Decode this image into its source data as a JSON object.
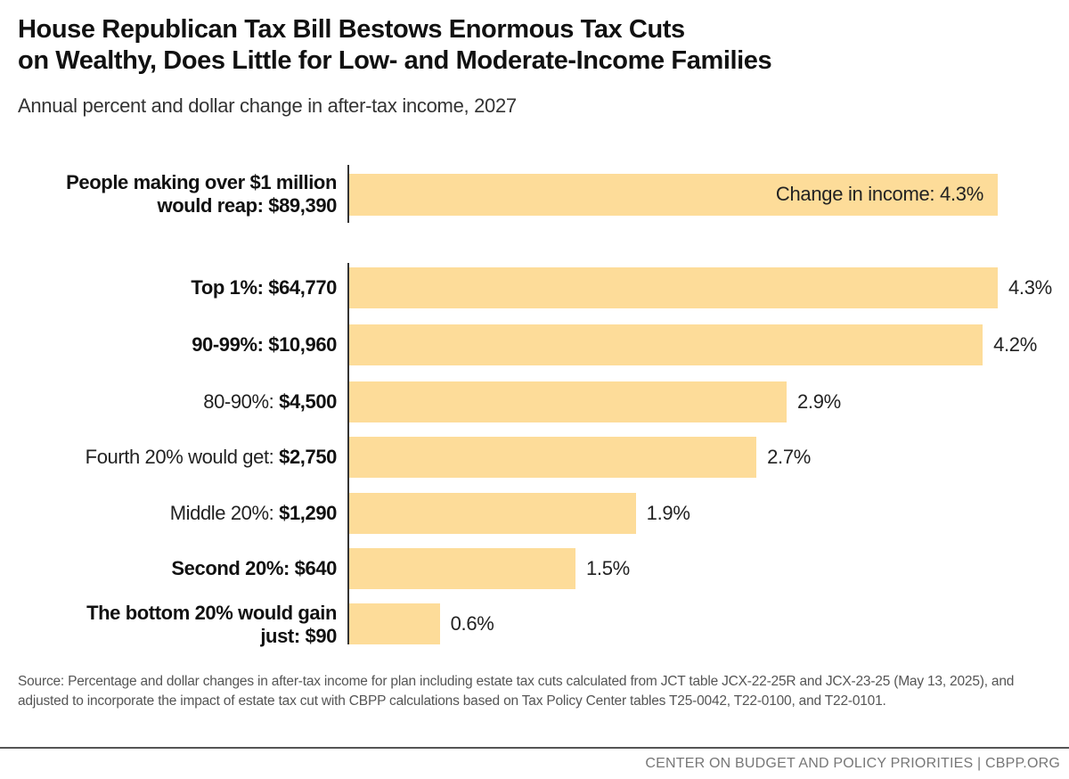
{
  "chart_data": {
    "type": "bar",
    "orientation": "horizontal",
    "title_lines": [
      "House Republican Tax Bill Bestows Enormous Tax Cuts",
      "on Wealthy, Does Little for Low- and Moderate-Income Families"
    ],
    "subtitle": "Annual percent and dollar change in after-tax income, 2027",
    "bar_color": "#FDDC99",
    "highlight": {
      "label_lines": [
        "People making over $1 million",
        "would reap: $89,390"
      ],
      "value": 4.3,
      "value_label": "Change in income: 4.3%"
    },
    "categories": [
      {
        "prefix": "Top 1%: ",
        "amount": "$64,770",
        "prefix_bold": true
      },
      {
        "prefix": "90-99%: ",
        "amount": "$10,960",
        "prefix_bold": true
      },
      {
        "prefix": "80-90%: ",
        "amount": "$4,500",
        "prefix_bold": false
      },
      {
        "prefix": "Fourth 20% would get: ",
        "amount": "$2,750",
        "prefix_bold": false
      },
      {
        "prefix": "Middle 20%: ",
        "amount": "$1,290",
        "prefix_bold": false
      },
      {
        "prefix": "Second 20%: ",
        "amount": "$640",
        "prefix_bold": true
      },
      {
        "prefix": "The bottom 20% would gain just: ",
        "amount": "$90",
        "prefix_bold": true,
        "lines": [
          "The bottom 20% would gain",
          "just: $90"
        ]
      }
    ],
    "values": [
      4.3,
      4.2,
      2.9,
      2.7,
      1.9,
      1.5,
      0.6
    ],
    "value_labels": [
      "4.3%",
      "4.2%",
      "2.9%",
      "2.7%",
      "1.9%",
      "1.5%",
      "0.6%"
    ],
    "xlim": [
      0,
      4.3
    ]
  },
  "source": "Source: Percentage and dollar changes in after-tax income for plan including estate tax cuts calculated from JCT table JCX-22-25R and JCX-23-25 (May 13, 2025), and adjusted to incorporate the impact of estate tax cut with CBPP calculations based on Tax Policy Center tables T25-0042, T22-0100, and T22-0101.",
  "footer": "CENTER ON BUDGET AND POLICY PRIORITIES | CBPP.ORG"
}
